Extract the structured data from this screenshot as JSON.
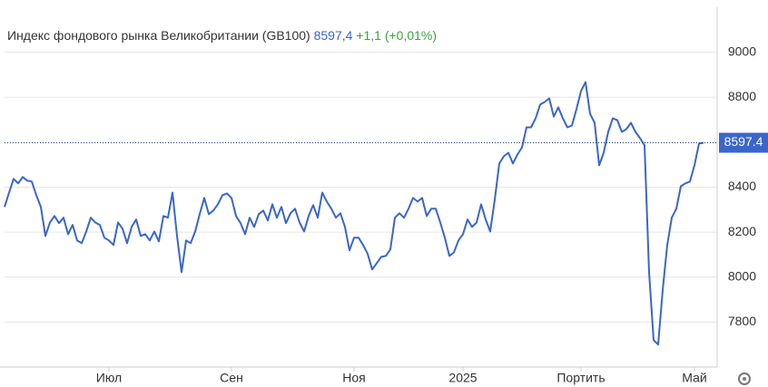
{
  "chart_data": {
    "type": "line",
    "title": "Индекс фондового рынка Великобритании (GB100)",
    "price": "8597,4",
    "change": "+1,1 (+0,01%)",
    "color": "#3a66cc",
    "values": [
      8312,
      8376,
      8437,
      8417,
      8445,
      8429,
      8425,
      8364,
      8312,
      8183,
      8243,
      8272,
      8240,
      8264,
      8191,
      8232,
      8163,
      8151,
      8203,
      8264,
      8243,
      8232,
      8175,
      8163,
      8143,
      8243,
      8215,
      8151,
      8223,
      8256,
      8183,
      8191,
      8163,
      8203,
      8159,
      8272,
      8264,
      8376,
      8183,
      8022,
      8163,
      8151,
      8203,
      8280,
      8352,
      8280,
      8296,
      8324,
      8364,
      8372,
      8352,
      8272,
      8240,
      8191,
      8264,
      8223,
      8280,
      8296,
      8252,
      8324,
      8264,
      8312,
      8240,
      8284,
      8304,
      8243,
      8203,
      8272,
      8320,
      8264,
      8376,
      8336,
      8304,
      8264,
      8284,
      8223,
      8119,
      8175,
      8175,
      8143,
      8103,
      8034,
      8062,
      8090,
      8094,
      8123,
      8264,
      8284,
      8264,
      8304,
      8352,
      8336,
      8352,
      8272,
      8304,
      8304,
      8243,
      8175,
      8094,
      8110,
      8163,
      8191,
      8256,
      8223,
      8243,
      8324,
      8256,
      8203,
      8344,
      8505,
      8537,
      8553,
      8505,
      8545,
      8577,
      8666,
      8666,
      8706,
      8767,
      8779,
      8795,
      8714,
      8755,
      8706,
      8666,
      8674,
      8747,
      8827,
      8867,
      8726,
      8686,
      8497,
      8553,
      8646,
      8706,
      8698,
      8646,
      8658,
      8686,
      8646,
      8618,
      8586,
      8022,
      7720,
      7700,
      7942,
      8143,
      8264,
      8304,
      8404,
      8417,
      8425,
      8497,
      8594,
      8597.4
    ],
    "xlim": [
      -1,
      157
    ],
    "xticks": [
      {
        "value": 23,
        "label": "Июл"
      },
      {
        "value": 50,
        "label": "Сен"
      },
      {
        "value": 77,
        "label": "Ноя"
      },
      {
        "value": 101,
        "label": "2025"
      },
      {
        "value": 127,
        "label": "Портить"
      },
      {
        "value": 152,
        "label": "Май"
      }
    ],
    "ylim": [
      7600,
      9200
    ],
    "yticks": [
      7800,
      8000,
      8200,
      8400,
      8800,
      9000
    ],
    "grid": true
  }
}
